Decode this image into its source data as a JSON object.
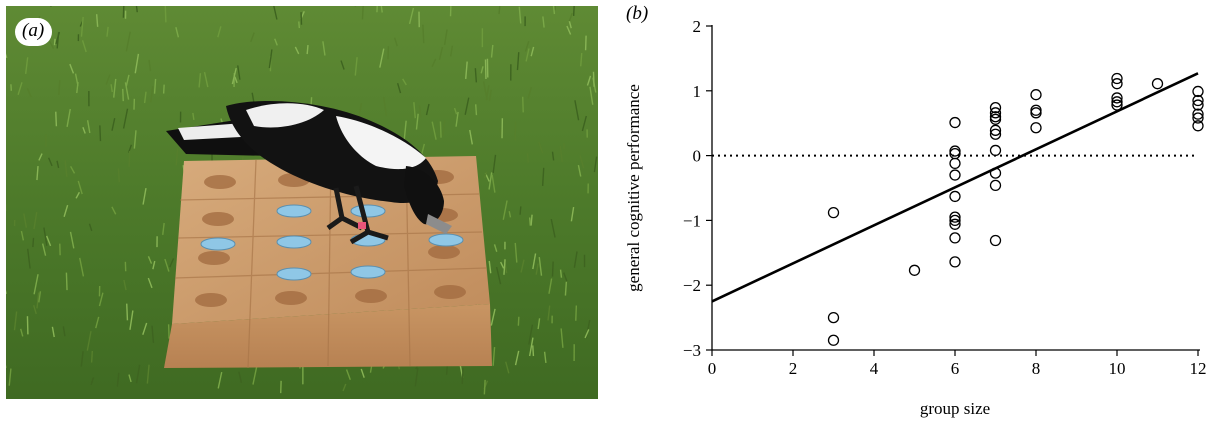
{
  "figure": {
    "panel_a": {
      "label": "(a)"
    },
    "panel_b": {
      "label": "(b)"
    }
  },
  "chart_data": {
    "type": "scatter",
    "xlabel": "group size",
    "ylabel": "general cognitive performance",
    "xlim": [
      0,
      12
    ],
    "ylim": [
      -3,
      2
    ],
    "xticks": [
      0,
      2,
      4,
      6,
      8,
      10,
      12
    ],
    "yticks": [
      -3,
      -2,
      -1,
      0,
      1,
      2
    ],
    "grid": false,
    "legend": "none",
    "reference_line": {
      "y": 0,
      "style": "dotted"
    },
    "fit_line": {
      "x": [
        0,
        12
      ],
      "y": [
        -2.25,
        1.27
      ]
    },
    "points": [
      {
        "x": 3,
        "y": -0.88
      },
      {
        "x": 3,
        "y": -2.5
      },
      {
        "x": 3,
        "y": -2.85
      },
      {
        "x": 5,
        "y": -1.77
      },
      {
        "x": 6,
        "y": 0.51
      },
      {
        "x": 6,
        "y": 0.07
      },
      {
        "x": 6,
        "y": 0.03
      },
      {
        "x": 6,
        "y": -0.12
      },
      {
        "x": 6,
        "y": -0.3
      },
      {
        "x": 6,
        "y": -0.63
      },
      {
        "x": 6,
        "y": -0.95
      },
      {
        "x": 6,
        "y": -1.0
      },
      {
        "x": 6,
        "y": -1.06
      },
      {
        "x": 6,
        "y": -1.27
      },
      {
        "x": 6,
        "y": -1.64
      },
      {
        "x": 7,
        "y": 0.74
      },
      {
        "x": 7,
        "y": 0.66
      },
      {
        "x": 7,
        "y": 0.6
      },
      {
        "x": 7,
        "y": 0.56
      },
      {
        "x": 7,
        "y": 0.39
      },
      {
        "x": 7,
        "y": 0.33
      },
      {
        "x": 7,
        "y": 0.08
      },
      {
        "x": 7,
        "y": -0.27
      },
      {
        "x": 7,
        "y": -0.46
      },
      {
        "x": 7,
        "y": -1.31
      },
      {
        "x": 8,
        "y": 0.94
      },
      {
        "x": 8,
        "y": 0.7
      },
      {
        "x": 8,
        "y": 0.66
      },
      {
        "x": 8,
        "y": 0.43
      },
      {
        "x": 10,
        "y": 1.19
      },
      {
        "x": 10,
        "y": 1.11
      },
      {
        "x": 10,
        "y": 0.89
      },
      {
        "x": 10,
        "y": 0.83
      },
      {
        "x": 10,
        "y": 0.78
      },
      {
        "x": 11,
        "y": 1.11
      },
      {
        "x": 12,
        "y": 0.99
      },
      {
        "x": 12,
        "y": 0.85
      },
      {
        "x": 12,
        "y": 0.78
      },
      {
        "x": 12,
        "y": 0.64
      },
      {
        "x": 12,
        "y": 0.58
      },
      {
        "x": 12,
        "y": 0.46
      }
    ]
  },
  "colors": {
    "grass": "#4f7a2c",
    "board": "#c99a6b",
    "bird_black": "#111111",
    "bird_white": "#f2f2f2",
    "lid_blue": "#8fc7e6"
  }
}
